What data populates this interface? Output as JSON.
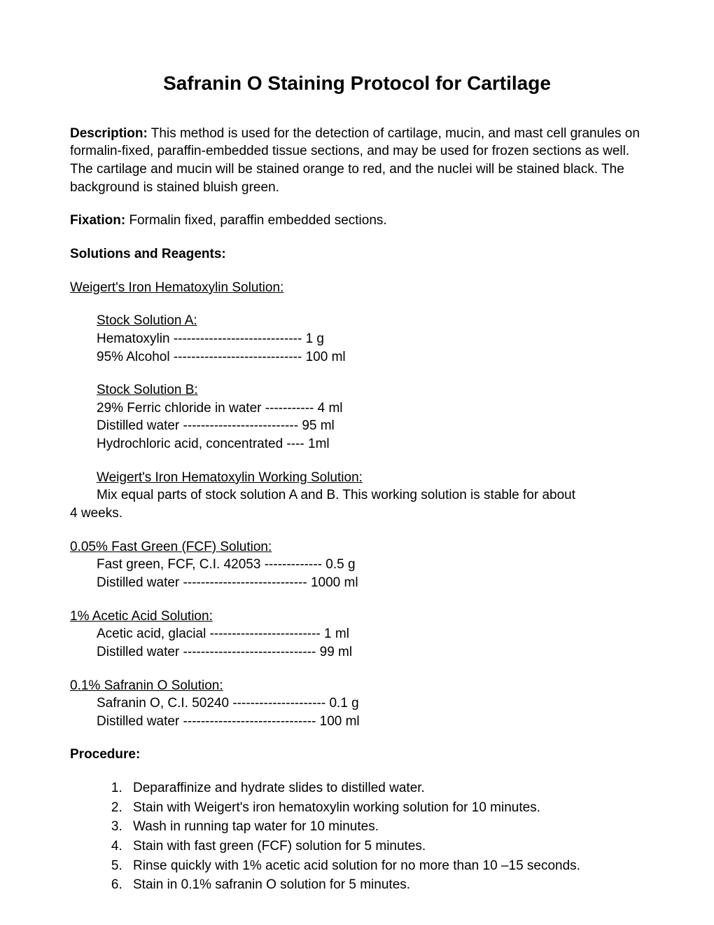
{
  "title": "Safranin O Staining Protocol for Cartilage",
  "description_label": "Description:",
  "description_text": " This method is used for the detection of cartilage, mucin, and mast cell granules on formalin-fixed, paraffin-embedded tissue sections, and may be used for frozen sections as well. The cartilage and mucin will be stained orange to red, and the nuclei will be stained black. The background is stained bluish green.",
  "fixation_label": "Fixation:",
  "fixation_text": " Formalin fixed, paraffin embedded sections.",
  "solutions_header": "Solutions and Reagents:",
  "weigert_header": "Weigert's Iron Hematoxylin Solution:",
  "stock_a_header": "Stock Solution A:",
  "stock_a_line1": "Hematoxylin ----------------------------- 1 g",
  "stock_a_line2": "95% Alcohol ----------------------------- 100 ml",
  "stock_b_header": "Stock Solution B:",
  "stock_b_line1": "29% Ferric chloride in water ----------- 4 ml",
  "stock_b_line2": "Distilled water -------------------------- 95 ml",
  "stock_b_line3": "Hydrochloric acid, concentrated ---- 1ml",
  "working_header": "Weigert's Iron Hematoxylin Working Solution:",
  "working_text_indent": "Mix equal parts of stock solution A and B. This working solution is stable for about",
  "working_text_noindent": "4 weeks.",
  "fastgreen_header": "0.05% Fast Green (FCF) Solution:",
  "fastgreen_line1": "Fast green, FCF, C.I. 42053 ------------- 0.5 g",
  "fastgreen_line2": "Distilled water ---------------------------- 1000 ml",
  "acetic_header": "1% Acetic Acid Solution:",
  "acetic_line1": "Acetic acid, glacial ------------------------- 1 ml",
  "acetic_line2": "Distilled water ------------------------------ 99 ml",
  "safranin_header": "0.1% Safranin O Solution:",
  "safranin_line1": "Safranin O, C.I. 50240 --------------------- 0.1 g",
  "safranin_line2": "Distilled water ------------------------------ 100 ml",
  "procedure_label": "Procedure:",
  "procedure_steps": {
    "s1": "Deparaffinize and hydrate slides to distilled water.",
    "s2": "Stain with Weigert's iron hematoxylin working solution for 10 minutes.",
    "s3": "Wash in running tap water for 10 minutes.",
    "s4": "Stain with fast green (FCF) solution for 5 minutes.",
    "s5": "Rinse quickly with 1% acetic acid solution for no more than 10 –15 seconds.",
    "s6": "Stain in 0.1% safranin O solution for 5 minutes."
  }
}
